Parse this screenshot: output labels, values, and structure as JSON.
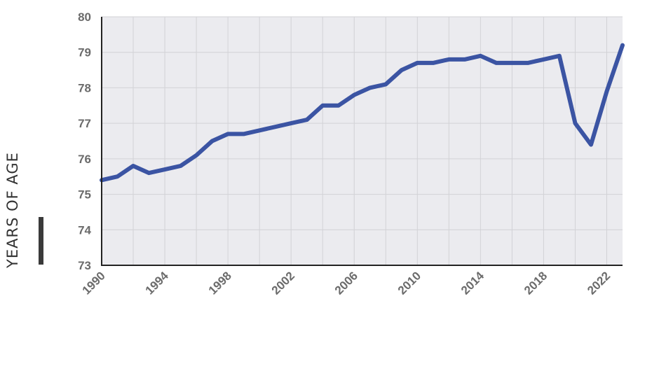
{
  "chart_data": {
    "type": "line",
    "title": "",
    "xlabel": "",
    "ylabel": "YEARS OF AGE",
    "xlim": [
      1990,
      2023
    ],
    "ylim": [
      73,
      80
    ],
    "grid": true,
    "legend": "none",
    "x_ticks": [
      1990,
      1994,
      1998,
      2002,
      2006,
      2010,
      2014,
      2018,
      2022
    ],
    "y_ticks": [
      73,
      74,
      75,
      76,
      77,
      78,
      79,
      80
    ],
    "series": [
      {
        "x": [
          1990,
          1991,
          1992,
          1993,
          1994,
          1995,
          1996,
          1997,
          1998,
          1999,
          2000,
          2001,
          2002,
          2003,
          2004,
          2005,
          2006,
          2007,
          2008,
          2009,
          2010,
          2011,
          2012,
          2013,
          2014,
          2015,
          2016,
          2017,
          2018,
          2019,
          2020,
          2021,
          2022,
          2023
        ],
        "values": [
          75.4,
          75.5,
          75.8,
          75.6,
          75.7,
          75.8,
          76.1,
          76.5,
          76.7,
          76.7,
          76.8,
          76.9,
          77.0,
          77.1,
          77.5,
          77.5,
          77.8,
          78.0,
          78.1,
          78.5,
          78.7,
          78.7,
          78.8,
          78.8,
          78.9,
          78.7,
          78.7,
          78.7,
          78.8,
          78.9,
          77.0,
          76.4,
          77.9,
          79.2
        ]
      }
    ],
    "colors": {
      "line": "#3b54a3",
      "plot_bg": "#ebebef",
      "grid": "#d2d2d6",
      "axis": "#222222",
      "label_bar": "#3a3a3a"
    }
  }
}
